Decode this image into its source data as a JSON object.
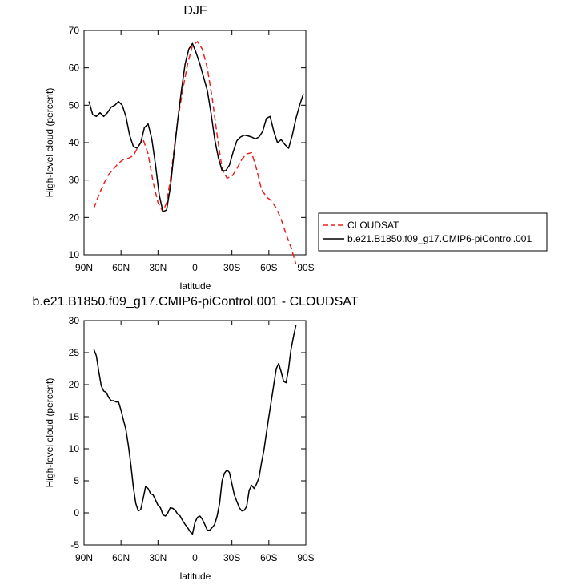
{
  "chart_data": [
    {
      "type": "line",
      "title": "DJF",
      "xlabel": "latitude",
      "ylabel": "High-level cloud (percent)",
      "xlim": [
        90,
        -90
      ],
      "ylim": [
        10,
        70
      ],
      "xtick_values": [
        90,
        60,
        30,
        0,
        -30,
        -60,
        -90
      ],
      "xtick_labels": [
        "90N",
        "60N",
        "30N",
        "0",
        "30S",
        "60S",
        "90S"
      ],
      "ytick_values": [
        10,
        20,
        30,
        40,
        50,
        60,
        70
      ],
      "ytick_labels": [
        "10",
        "20",
        "30",
        "40",
        "50",
        "60",
        "70"
      ],
      "legend_position": "right",
      "series": [
        {
          "name": "CLOUDSAT",
          "color": "#e8231f",
          "dash": "dashed",
          "x": [
            82,
            78,
            74,
            70,
            66,
            62,
            58,
            54,
            50,
            46,
            42,
            38,
            34,
            30,
            26,
            23,
            20,
            17,
            14,
            10,
            6,
            2,
            -2,
            -6,
            -10,
            -14,
            -18,
            -22,
            -26,
            -30,
            -34,
            -38,
            -42,
            -46,
            -50,
            -54,
            -58,
            -62,
            -66,
            -70,
            -74,
            -78,
            -82
          ],
          "y": [
            22.5,
            26,
            29,
            31.5,
            33,
            34.5,
            35.5,
            35.8,
            36.5,
            39,
            40.8,
            37,
            29.5,
            24,
            21.5,
            24,
            30,
            38,
            46,
            54,
            61,
            66,
            67,
            65,
            60,
            52,
            42,
            33,
            30.5,
            31,
            33,
            35.5,
            37,
            37.3,
            33,
            27.5,
            25.5,
            24.5,
            22.5,
            19.5,
            15.5,
            12,
            7.5
          ]
        },
        {
          "name": "b.e21.B1850.f09_g17.CMIP6-piControl.001",
          "color": "#000000",
          "dash": "solid",
          "x": [
            86,
            83,
            80,
            77,
            74,
            71,
            68,
            65,
            62,
            59,
            56,
            53,
            50,
            47,
            44,
            41,
            38,
            35,
            32,
            29,
            26,
            23,
            20,
            17,
            14,
            11,
            8,
            5,
            2,
            -1,
            -4,
            -7,
            -10,
            -13,
            -16,
            -19,
            -22,
            -25,
            -28,
            -31,
            -34,
            -37,
            -40,
            -43,
            -46,
            -49,
            -52,
            -55,
            -58,
            -61,
            -64,
            -67,
            -70,
            -73,
            -76,
            -79,
            -82,
            -85,
            -88
          ],
          "y": [
            51,
            47.5,
            47,
            48,
            47,
            48,
            49.5,
            50,
            51,
            50,
            47,
            42,
            39,
            38.5,
            40,
            44,
            45,
            41,
            34,
            26,
            21.5,
            22,
            28,
            37,
            46,
            54,
            61,
            65,
            66.5,
            64,
            61,
            57.5,
            54,
            48,
            41,
            36,
            32.5,
            32.5,
            34,
            37.5,
            40.5,
            41.5,
            42,
            41.8,
            41.5,
            41,
            41.5,
            43,
            46.5,
            47,
            43,
            40,
            40.8,
            39.5,
            38.5,
            42,
            46.5,
            50,
            53
          ]
        }
      ]
    },
    {
      "type": "line",
      "title": "b.e21.B1850.f09_g17.CMIP6-piControl.001 - CLOUDSAT",
      "xlabel": "latitude",
      "ylabel": "High-level cloud (percent)",
      "xlim": [
        90,
        -90
      ],
      "ylim": [
        -5,
        30
      ],
      "xtick_values": [
        90,
        60,
        30,
        0,
        -30,
        -60,
        -90
      ],
      "xtick_labels": [
        "90N",
        "60N",
        "30N",
        "0",
        "30S",
        "60S",
        "90S"
      ],
      "ytick_values": [
        -5,
        0,
        5,
        10,
        15,
        20,
        25,
        30
      ],
      "ytick_labels": [
        "-5",
        "0",
        "5",
        "10",
        "15",
        "20",
        "25",
        "30"
      ],
      "series": [
        {
          "color": "#000000",
          "dash": "solid",
          "x": [
            82,
            80,
            78,
            76,
            74,
            72,
            70,
            68,
            66,
            64,
            62,
            60,
            58,
            56,
            54,
            52,
            50,
            48,
            46,
            44,
            42,
            40,
            38,
            36,
            34,
            32,
            30,
            28,
            26,
            24,
            22,
            20,
            18,
            16,
            14,
            12,
            10,
            8,
            6,
            4,
            2,
            0,
            -2,
            -4,
            -6,
            -8,
            -10,
            -12,
            -14,
            -16,
            -18,
            -20,
            -22,
            -24,
            -26,
            -28,
            -30,
            -32,
            -34,
            -36,
            -38,
            -40,
            -42,
            -44,
            -46,
            -48,
            -50,
            -52,
            -54,
            -56,
            -58,
            -60,
            -62,
            -64,
            -66,
            -68,
            -70,
            -72,
            -74,
            -76,
            -78,
            -80,
            -82
          ],
          "y": [
            25.5,
            24.5,
            22,
            19.8,
            19,
            18.8,
            18,
            17.5,
            17.5,
            17.3,
            17.3,
            16,
            14.5,
            13,
            10.5,
            7.5,
            4,
            1.5,
            0.3,
            0.5,
            2.3,
            4.1,
            3.8,
            3,
            2.8,
            2,
            1.2,
            0.8,
            -0.3,
            -0.5,
            0,
            0.8,
            0.7,
            0.4,
            -0.2,
            -0.5,
            -1.2,
            -1.8,
            -2.3,
            -2.9,
            -3.3,
            -1.5,
            -0.7,
            -0.5,
            -1,
            -1.8,
            -2.7,
            -2.7,
            -2.3,
            -1.8,
            -0.5,
            1.5,
            5,
            6.2,
            6.7,
            6.3,
            4.5,
            2.8,
            1.8,
            0.8,
            0.3,
            0.4,
            1,
            3.5,
            4.3,
            3.8,
            4.5,
            5.5,
            7.8,
            9.8,
            12.5,
            15,
            17.5,
            20,
            22.5,
            23.3,
            22,
            20.5,
            20.3,
            22.5,
            25.5,
            27.5,
            29.3
          ]
        }
      ]
    }
  ]
}
